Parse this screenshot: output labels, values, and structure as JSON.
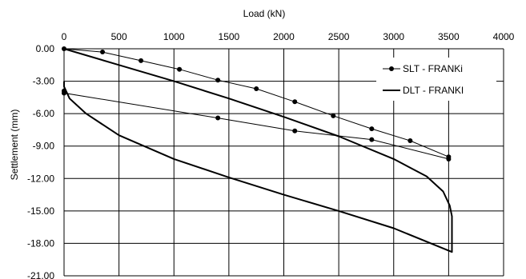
{
  "chart_data": {
    "type": "line",
    "xlabel": "Load (kN)",
    "ylabel": "Settlement (mm)",
    "xlim": [
      0,
      4000
    ],
    "ylim": [
      -21,
      0
    ],
    "x_ticks": [
      0,
      500,
      1000,
      1500,
      2000,
      2500,
      3000,
      3500,
      4000
    ],
    "x_tick_labels": [
      "0",
      "500",
      "1000",
      "1500",
      "2000",
      "2500",
      "3000",
      "3500",
      "4000"
    ],
    "y_ticks": [
      0,
      -3,
      -6,
      -9,
      -12,
      -15,
      -18,
      -21
    ],
    "y_tick_labels": [
      "0.00",
      "-3.00",
      "-6.00",
      "-9.00",
      "-12.00",
      "-15.00",
      "-18.00",
      "-21.00"
    ],
    "x_axis_position": "top",
    "grid": true,
    "legend_position": "top-right",
    "series": [
      {
        "name": "SLT - FRANKi",
        "marker": "circle",
        "color": "#000000",
        "loading": [
          [
            0,
            0
          ],
          [
            350,
            -0.3
          ],
          [
            700,
            -1.1
          ],
          [
            1050,
            -1.9
          ],
          [
            1400,
            -2.9
          ],
          [
            1750,
            -3.7
          ],
          [
            2100,
            -4.9
          ],
          [
            2450,
            -6.2
          ],
          [
            2800,
            -7.4
          ],
          [
            3150,
            -8.5
          ],
          [
            3500,
            -10.0
          ]
        ],
        "unloading": [
          [
            3500,
            -10.2
          ],
          [
            2800,
            -8.4
          ],
          [
            2100,
            -7.6
          ],
          [
            1400,
            -6.4
          ],
          [
            0,
            -4.1
          ],
          [
            0,
            -3.9
          ]
        ]
      },
      {
        "name": "DLT - FRANKI",
        "marker": "none",
        "color": "#000000",
        "loading": [
          [
            0,
            0
          ],
          [
            500,
            -1.5
          ],
          [
            1000,
            -3.0
          ],
          [
            1500,
            -4.6
          ],
          [
            2000,
            -6.3
          ],
          [
            2500,
            -8.1
          ],
          [
            3000,
            -10.2
          ],
          [
            3300,
            -11.8
          ],
          [
            3450,
            -13.2
          ],
          [
            3510,
            -14.5
          ],
          [
            3530,
            -15.5
          ],
          [
            3530,
            -18.8
          ]
        ],
        "unloading": [
          [
            3530,
            -18.8
          ],
          [
            3000,
            -16.6
          ],
          [
            2500,
            -15.0
          ],
          [
            2000,
            -13.5
          ],
          [
            1500,
            -11.9
          ],
          [
            1000,
            -10.2
          ],
          [
            500,
            -8.0
          ],
          [
            200,
            -6.0
          ],
          [
            50,
            -4.6
          ],
          [
            0,
            -3.5
          ],
          [
            0,
            -3.0
          ]
        ]
      }
    ]
  }
}
